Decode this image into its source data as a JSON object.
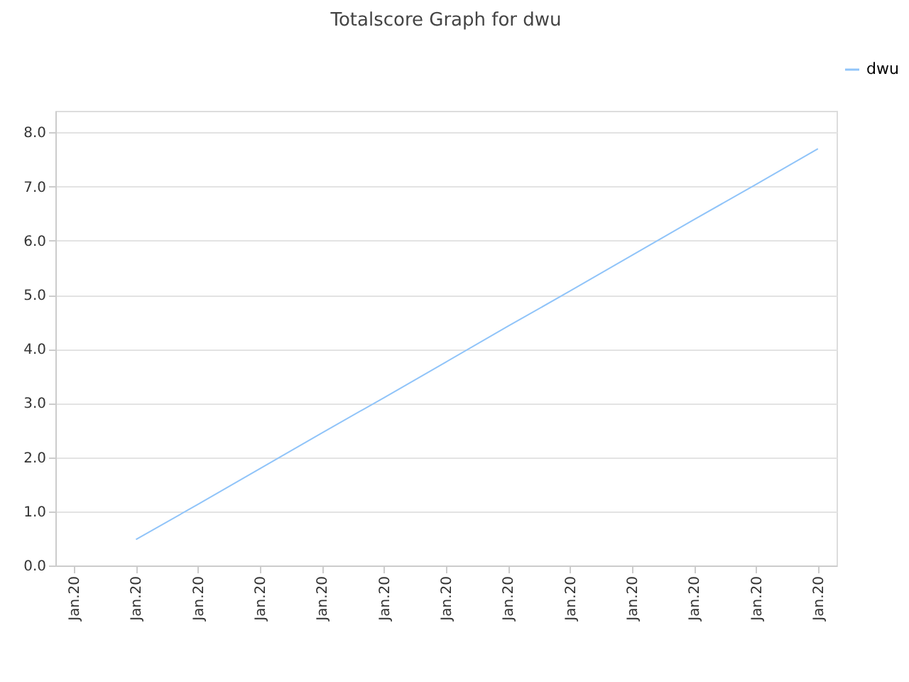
{
  "chart_data": {
    "type": "line",
    "title": "Totalscore Graph for dwu",
    "categories": [
      "Jan.20",
      "Jan.20",
      "Jan.20",
      "Jan.20",
      "Jan.20",
      "Jan.20",
      "Jan.20",
      "Jan.20",
      "Jan.20",
      "Jan.20",
      "Jan.20",
      "Jan.20",
      "Jan.20"
    ],
    "series": [
      {
        "name": "dwu",
        "color": "#90c4f9",
        "values": [
          null,
          0.48,
          1.13,
          1.79,
          2.45,
          3.1,
          3.76,
          4.42,
          5.07,
          5.73,
          6.39,
          7.04,
          7.7
        ]
      }
    ],
    "ylim": [
      0,
      8.4
    ],
    "yticks": [
      {
        "value": 0,
        "label": "0.0"
      },
      {
        "value": 1,
        "label": "1.0"
      },
      {
        "value": 2,
        "label": "2.0"
      },
      {
        "value": 3,
        "label": "3.0"
      },
      {
        "value": 4,
        "label": "4.0"
      },
      {
        "value": 5,
        "label": "5.0"
      },
      {
        "value": 6,
        "label": "6.0"
      },
      {
        "value": 7,
        "label": "7.0"
      },
      {
        "value": 8,
        "label": "8.0"
      }
    ],
    "grid": "y",
    "legend": "top right",
    "marker": "none",
    "line_style": "solid"
  }
}
